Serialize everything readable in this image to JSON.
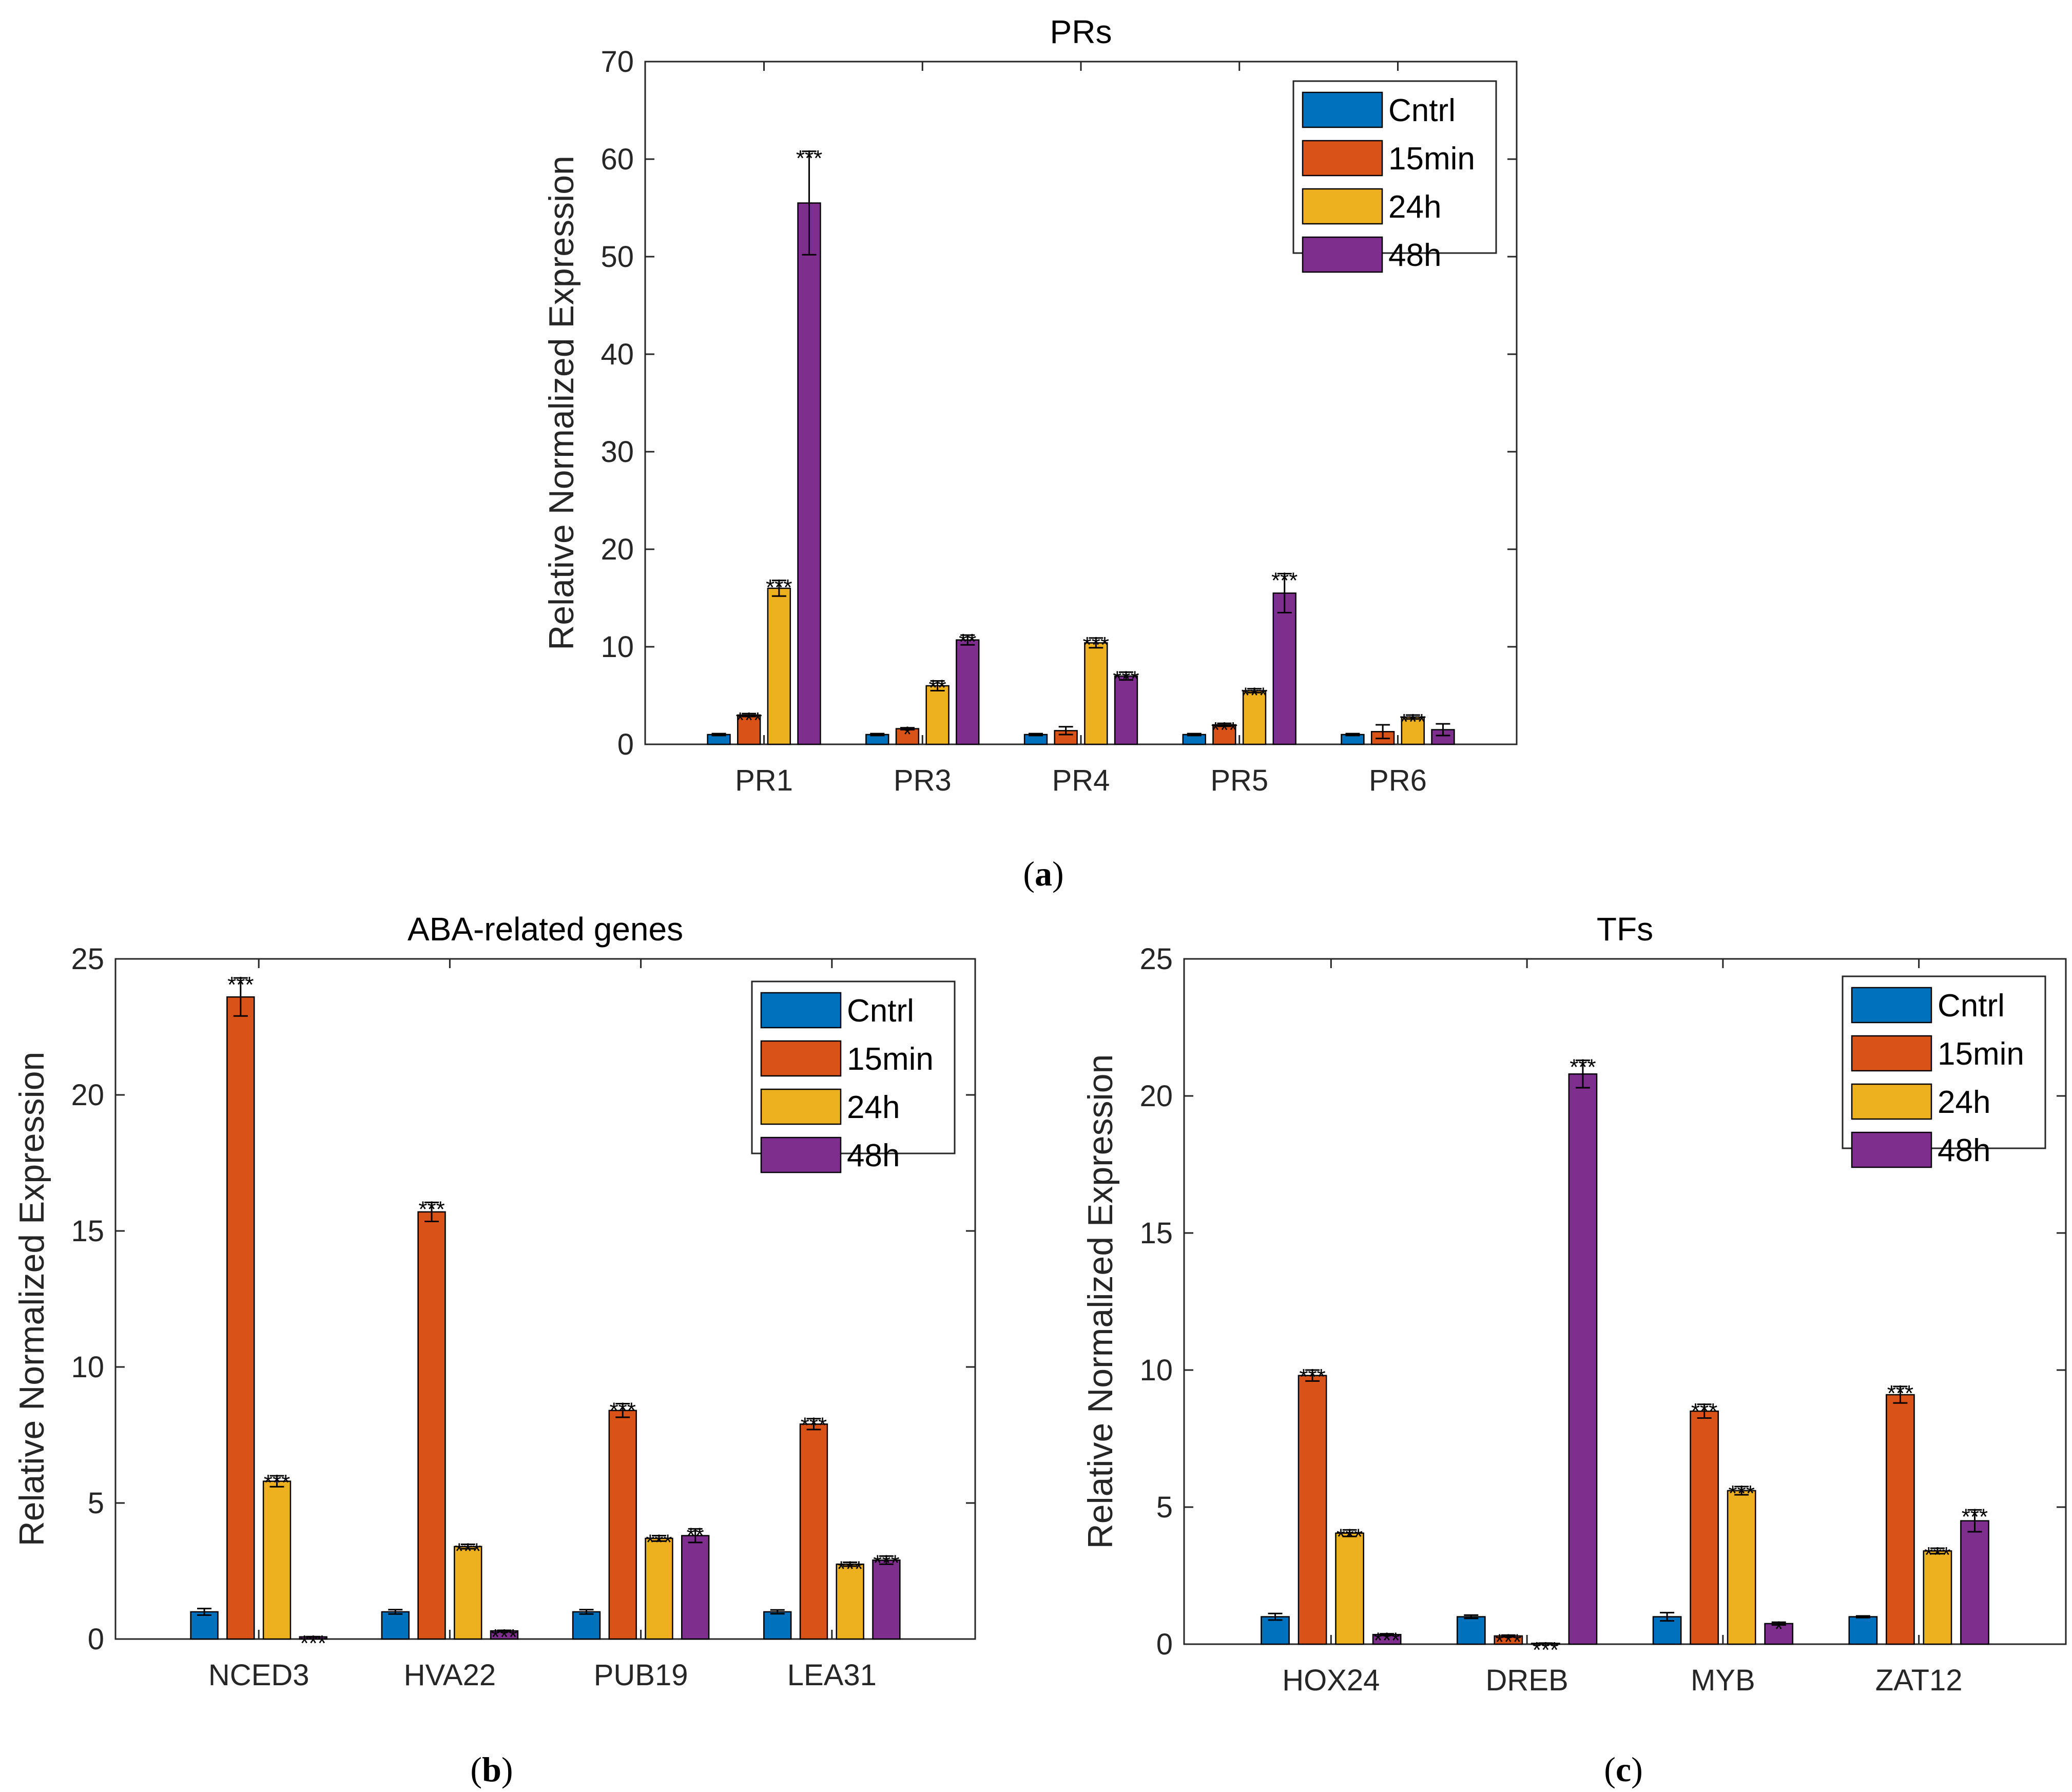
{
  "series_names": [
    "Cntrl",
    "15min",
    "24h",
    "48h"
  ],
  "series_colors": [
    "#0072bd",
    "#d95319",
    "#edb120",
    "#7e2f8e"
  ],
  "ylabel": "Relative Normalized Expression",
  "chart_data": [
    {
      "id": "a",
      "type": "bar",
      "title": "PRs",
      "panel_label": "a",
      "xlabel": "",
      "ylabel": "Relative Normalized Expression",
      "ylim": [
        0,
        70
      ],
      "yticks": [
        0,
        10,
        20,
        30,
        40,
        50,
        60,
        70
      ],
      "categories": [
        "PR1",
        "PR3",
        "PR4",
        "PR5",
        "PR6"
      ],
      "legend": [
        "Cntrl",
        "15min",
        "24h",
        "48h"
      ],
      "legend_position": "top-right",
      "series": [
        {
          "name": "Cntrl",
          "values": [
            1.0,
            1.0,
            1.0,
            1.0,
            1.0
          ],
          "errors": [
            0.1,
            0.1,
            0.1,
            0.1,
            0.1
          ],
          "sig": [
            "",
            "",
            "",
            "",
            ""
          ]
        },
        {
          "name": "15min",
          "values": [
            3.0,
            1.6,
            1.4,
            2.0,
            1.3
          ],
          "errors": [
            0.15,
            0.1,
            0.4,
            0.15,
            0.7
          ],
          "sig": [
            "***",
            "*",
            "",
            "***",
            ""
          ]
        },
        {
          "name": "24h",
          "values": [
            16.0,
            6.0,
            10.4,
            5.5,
            2.8
          ],
          "errors": [
            0.8,
            0.5,
            0.5,
            0.2,
            0.2
          ],
          "sig": [
            "***",
            "**",
            "***",
            "***",
            "***"
          ]
        },
        {
          "name": "48h",
          "values": [
            55.5,
            10.7,
            7.0,
            15.5,
            1.5
          ],
          "errors": [
            5.3,
            0.5,
            0.4,
            2.0,
            0.6
          ],
          "sig": [
            "***",
            "**",
            "***",
            "***",
            ""
          ]
        }
      ]
    },
    {
      "id": "b",
      "type": "bar",
      "title": "ABA-related genes",
      "panel_label": "b",
      "xlabel": "",
      "ylabel": "Relative Normalized Expression",
      "ylim": [
        0,
        25
      ],
      "yticks": [
        0,
        5,
        10,
        15,
        20,
        25
      ],
      "categories": [
        "NCED3",
        "HVA22",
        "PUB19",
        "LEA31"
      ],
      "legend": [
        "Cntrl",
        "15min",
        "24h",
        "48h"
      ],
      "legend_position": "top-right",
      "series": [
        {
          "name": "Cntrl",
          "values": [
            1.0,
            1.0,
            1.0,
            1.0
          ],
          "errors": [
            0.12,
            0.08,
            0.08,
            0.07
          ],
          "sig": [
            "",
            "",
            "",
            ""
          ]
        },
        {
          "name": "15min",
          "values": [
            23.6,
            15.7,
            8.4,
            7.9
          ],
          "errors": [
            0.7,
            0.35,
            0.25,
            0.2
          ],
          "sig": [
            "***",
            "***",
            "***",
            "***"
          ]
        },
        {
          "name": "24h",
          "values": [
            5.8,
            3.4,
            3.7,
            2.75
          ],
          "errors": [
            0.2,
            0.08,
            0.1,
            0.07
          ],
          "sig": [
            "***",
            "***",
            "***",
            "***"
          ]
        },
        {
          "name": "48h",
          "values": [
            0.08,
            0.3,
            3.8,
            2.9
          ],
          "errors": [
            0.01,
            0.02,
            0.25,
            0.15
          ],
          "sig": [
            "***",
            "***",
            "**",
            "***"
          ]
        }
      ]
    },
    {
      "id": "c",
      "type": "bar",
      "title": "TFs",
      "panel_label": "c",
      "xlabel": "",
      "ylabel": "Relative Normalized Expression",
      "ylim": [
        0,
        25
      ],
      "yticks": [
        0,
        5,
        10,
        15,
        20,
        25
      ],
      "categories": [
        "HOX24",
        "DREB",
        "MYB",
        "ZAT12"
      ],
      "legend": [
        "Cntrl",
        "15min",
        "24h",
        "48h"
      ],
      "legend_position": "top-right",
      "series": [
        {
          "name": "Cntrl",
          "values": [
            1.0,
            1.0,
            1.0,
            1.0
          ],
          "errors": [
            0.12,
            0.06,
            0.15,
            0.03
          ],
          "sig": [
            "",
            "",
            "",
            ""
          ]
        },
        {
          "name": "15min",
          "values": [
            9.8,
            0.3,
            8.5,
            9.1
          ],
          "errors": [
            0.2,
            0.03,
            0.25,
            0.3
          ],
          "sig": [
            "***",
            "***",
            "***",
            "***"
          ]
        },
        {
          "name": "24h",
          "values": [
            4.05,
            0.03,
            5.6,
            3.4
          ],
          "errors": [
            0.12,
            0.01,
            0.15,
            0.1
          ],
          "sig": [
            "***",
            "***",
            "***",
            "***"
          ]
        },
        {
          "name": "48h",
          "values": [
            0.35,
            20.8,
            0.75,
            4.5
          ],
          "errors": [
            0.03,
            0.5,
            0.05,
            0.4
          ],
          "sig": [
            "***",
            "***",
            "*",
            "***"
          ]
        }
      ]
    }
  ]
}
